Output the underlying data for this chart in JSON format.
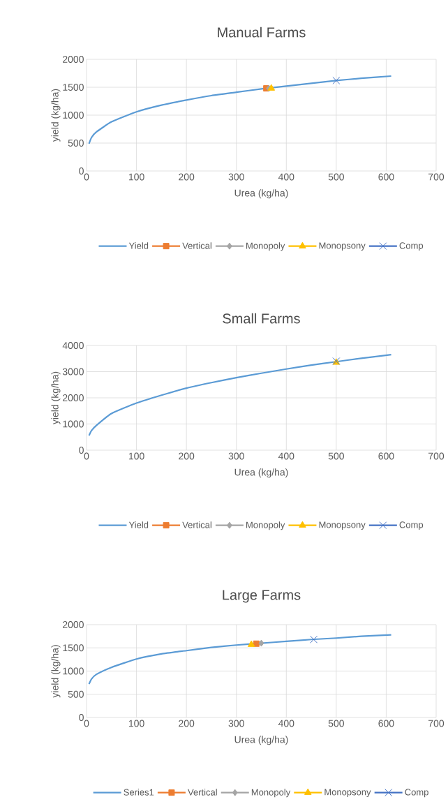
{
  "chart_data": [
    {
      "type": "line",
      "title": "Manual Farms",
      "xlabel": "Urea (kg/ha)",
      "ylabel": "yield (kg/ha)",
      "xlim": [
        0,
        700
      ],
      "xticks": [
        0,
        100,
        200,
        300,
        400,
        500,
        600,
        700
      ],
      "ylim": [
        0,
        2000
      ],
      "yticks": [
        0,
        500,
        1000,
        1500,
        2000
      ],
      "grid": true,
      "legend": "bottom",
      "series": [
        {
          "name": "Yield",
          "color": "#5b9bd5",
          "marker": "none",
          "x": [
            5,
            10,
            20,
            50,
            100,
            150,
            200,
            250,
            300,
            350,
            400,
            450,
            500,
            550,
            610
          ],
          "values": [
            490,
            600,
            700,
            880,
            1060,
            1180,
            1270,
            1350,
            1410,
            1470,
            1520,
            1570,
            1620,
            1660,
            1700
          ]
        },
        {
          "name": "Vertical",
          "color": "#ed7d31",
          "marker": "square",
          "x": [
            360
          ],
          "values": [
            1480
          ]
        },
        {
          "name": "Monopoly",
          "color": "#a5a5a5",
          "marker": "diamond",
          "x": [
            365
          ],
          "values": [
            1480
          ]
        },
        {
          "name": "Monopsony",
          "color": "#ffc000",
          "marker": "triangle",
          "x": [
            370
          ],
          "values": [
            1480
          ]
        },
        {
          "name": "Comp",
          "color": "#4472c4",
          "marker": "cross",
          "x": [
            500
          ],
          "values": [
            1620
          ]
        }
      ]
    },
    {
      "type": "line",
      "title": "Small Farms",
      "xlabel": "Urea (kg/ha)",
      "ylabel": "yield (kg/ha)",
      "xlim": [
        0,
        700
      ],
      "xticks": [
        0,
        100,
        200,
        300,
        400,
        500,
        600,
        700
      ],
      "ylim": [
        0,
        4000
      ],
      "yticks": [
        0,
        1000,
        2000,
        3000,
        4000
      ],
      "grid": true,
      "legend": "bottom",
      "series": [
        {
          "name": "Yield",
          "color": "#5b9bd5",
          "marker": "none",
          "x": [
            5,
            10,
            20,
            50,
            100,
            150,
            200,
            250,
            300,
            350,
            400,
            450,
            500,
            550,
            610
          ],
          "values": [
            560,
            750,
            950,
            1400,
            1800,
            2100,
            2370,
            2580,
            2770,
            2940,
            3100,
            3250,
            3380,
            3510,
            3650
          ]
        },
        {
          "name": "Vertical",
          "color": "#ed7d31",
          "marker": "square",
          "x": [
            null
          ],
          "values": [
            null
          ]
        },
        {
          "name": "Monopoly",
          "color": "#a5a5a5",
          "marker": "diamond",
          "x": [
            null
          ],
          "values": [
            null
          ]
        },
        {
          "name": "Monopsony",
          "color": "#ffc000",
          "marker": "triangle",
          "x": [
            500
          ],
          "values": [
            3350
          ]
        },
        {
          "name": "Comp",
          "color": "#4472c4",
          "marker": "cross",
          "x": [
            500
          ],
          "values": [
            3400
          ]
        }
      ]
    },
    {
      "type": "line",
      "title": "Large Farms",
      "xlabel": "Urea (kg/ha)",
      "ylabel": "yield (kg/ha)",
      "xlim": [
        0,
        700
      ],
      "xticks": [
        0,
        100,
        200,
        300,
        400,
        500,
        600,
        700
      ],
      "ylim": [
        0,
        2000
      ],
      "yticks": [
        0,
        500,
        1000,
        1500,
        2000
      ],
      "grid": true,
      "legend": "bottom",
      "series": [
        {
          "name": "Series1",
          "color": "#5b9bd5",
          "marker": "none",
          "x": [
            5,
            10,
            20,
            50,
            100,
            150,
            200,
            250,
            300,
            350,
            400,
            450,
            500,
            550,
            610
          ],
          "values": [
            720,
            830,
            930,
            1080,
            1260,
            1370,
            1440,
            1510,
            1560,
            1600,
            1640,
            1680,
            1710,
            1750,
            1780
          ]
        },
        {
          "name": "Vertical",
          "color": "#ed7d31",
          "marker": "square",
          "x": [
            340
          ],
          "values": [
            1590
          ]
        },
        {
          "name": "Monopoly",
          "color": "#a5a5a5",
          "marker": "diamond",
          "x": [
            350
          ],
          "values": [
            1600
          ]
        },
        {
          "name": "Monopsony",
          "color": "#ffc000",
          "marker": "triangle",
          "x": [
            330
          ],
          "values": [
            1570
          ]
        },
        {
          "name": "Comp",
          "color": "#4472c4",
          "marker": "cross",
          "x": [
            455
          ],
          "values": [
            1680
          ]
        }
      ]
    }
  ]
}
